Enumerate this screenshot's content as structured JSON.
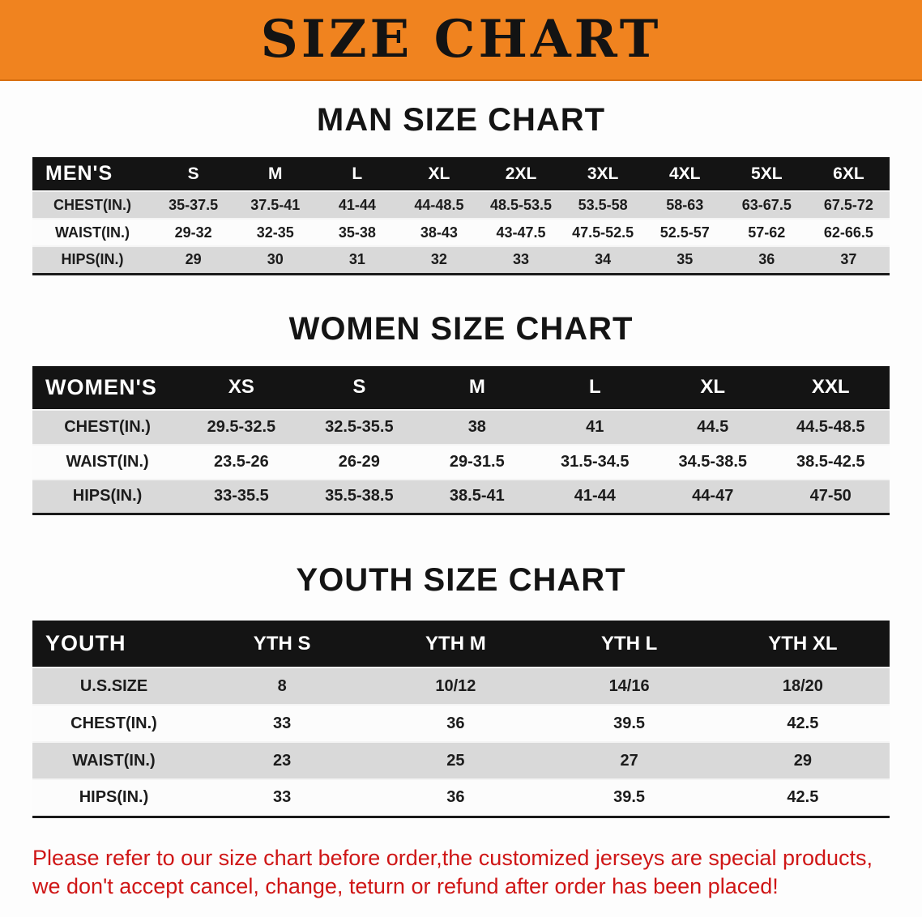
{
  "banner": {
    "title": "SIZE CHART"
  },
  "colors": {
    "banner_bg": "#f0831f",
    "table_header_bg": "#141414",
    "row_alt_bg": "#d9d9d9",
    "disclaimer_text": "#cf1616"
  },
  "men": {
    "heading": "MAN SIZE CHART",
    "header": [
      "MEN'S",
      "S",
      "M",
      "L",
      "XL",
      "2XL",
      "3XL",
      "4XL",
      "5XL",
      "6XL"
    ],
    "rows": [
      {
        "label": "CHEST(IN.)",
        "values": [
          "35-37.5",
          "37.5-41",
          "41-44",
          "44-48.5",
          "48.5-53.5",
          "53.5-58",
          "58-63",
          "63-67.5",
          "67.5-72"
        ]
      },
      {
        "label": "WAIST(IN.)",
        "values": [
          "29-32",
          "32-35",
          "35-38",
          "38-43",
          "43-47.5",
          "47.5-52.5",
          "52.5-57",
          "57-62",
          "62-66.5"
        ]
      },
      {
        "label": "HIPS(IN.)",
        "values": [
          "29",
          "30",
          "31",
          "32",
          "33",
          "34",
          "35",
          "36",
          "37"
        ]
      }
    ]
  },
  "women": {
    "heading": "WOMEN SIZE CHART",
    "header": [
      "WOMEN'S",
      "XS",
      "S",
      "M",
      "L",
      "XL",
      "XXL"
    ],
    "rows": [
      {
        "label": "CHEST(IN.)",
        "values": [
          "29.5-32.5",
          "32.5-35.5",
          "38",
          "41",
          "44.5",
          "44.5-48.5"
        ]
      },
      {
        "label": "WAIST(IN.)",
        "values": [
          "23.5-26",
          "26-29",
          "29-31.5",
          "31.5-34.5",
          "34.5-38.5",
          "38.5-42.5"
        ]
      },
      {
        "label": "HIPS(IN.)",
        "values": [
          "33-35.5",
          "35.5-38.5",
          "38.5-41",
          "41-44",
          "44-47",
          "47-50"
        ]
      }
    ]
  },
  "youth": {
    "heading": "YOUTH SIZE CHART",
    "header": [
      "YOUTH",
      "YTH S",
      "YTH M",
      "YTH L",
      "YTH XL"
    ],
    "rows": [
      {
        "label": "U.S.SIZE",
        "values": [
          "8",
          "10/12",
          "14/16",
          "18/20"
        ]
      },
      {
        "label": "CHEST(IN.)",
        "values": [
          "33",
          "36",
          "39.5",
          "42.5"
        ]
      },
      {
        "label": "WAIST(IN.)",
        "values": [
          "23",
          "25",
          "27",
          "29"
        ]
      },
      {
        "label": "HIPS(IN.)",
        "values": [
          "33",
          "36",
          "39.5",
          "42.5"
        ]
      }
    ]
  },
  "disclaimer": {
    "line1": "Please refer to our size chart before order,the customized jerseys are special products,",
    "line2": "we don't accept cancel, change, teturn or refund after order has been placed!"
  }
}
